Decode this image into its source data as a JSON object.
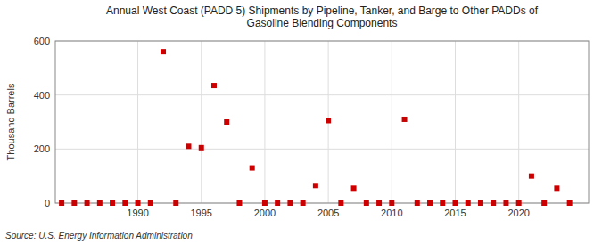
{
  "chart_data": {
    "type": "scatter",
    "title": "Annual West Coast (PADD 5) Shipments by Pipeline, Tanker, and Barge to Other PADDs of\nGasoline Blending Components",
    "ylabel": "Thousand Barrels",
    "source": "Source: U.S. Energy Information Administration",
    "color": "#cc0000",
    "marker": "square",
    "grid": true,
    "xlim": [
      1983.5,
      2025.5
    ],
    "ylim": [
      0,
      600
    ],
    "xticks": [
      1990,
      1995,
      2000,
      2005,
      2010,
      2015,
      2020
    ],
    "yticks": [
      0,
      200,
      400,
      600
    ],
    "x": [
      1984,
      1985,
      1986,
      1987,
      1988,
      1989,
      1990,
      1991,
      1992,
      1993,
      1994,
      1995,
      1996,
      1997,
      1998,
      1999,
      2000,
      2001,
      2002,
      2003,
      2004,
      2005,
      2006,
      2007,
      2008,
      2009,
      2010,
      2011,
      2012,
      2013,
      2014,
      2015,
      2016,
      2017,
      2018,
      2019,
      2020,
      2021,
      2022,
      2023,
      2024
    ],
    "values": [
      0,
      0,
      0,
      0,
      0,
      0,
      0,
      0,
      560,
      0,
      210,
      205,
      435,
      300,
      0,
      130,
      0,
      0,
      0,
      0,
      65,
      305,
      0,
      55,
      0,
      0,
      0,
      310,
      0,
      0,
      0,
      0,
      0,
      0,
      0,
      0,
      0,
      100,
      0,
      55,
      0
    ]
  }
}
